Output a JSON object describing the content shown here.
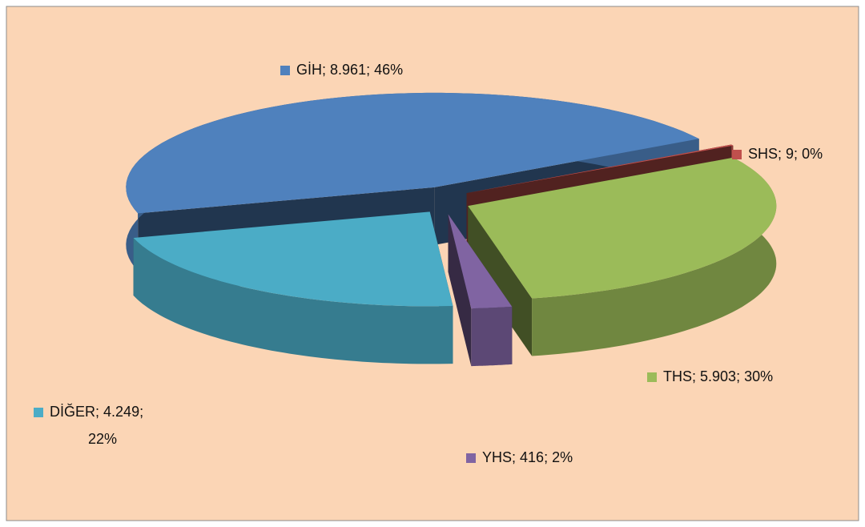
{
  "chart_data": {
    "type": "pie3d",
    "categories": [
      "GİH",
      "SHS",
      "THS",
      "YHS",
      "DİĞER"
    ],
    "values": [
      8961,
      9,
      5903,
      416,
      4249
    ],
    "value_labels": [
      "8.961",
      "9",
      "5.903",
      "416",
      "4.249"
    ],
    "percents": [
      46,
      0,
      30,
      2,
      22
    ],
    "percent_labels": [
      "46%",
      "0%",
      "30%",
      "2%",
      "22%"
    ],
    "label_separator": "; ",
    "colors": [
      "#4f81bd",
      "#c0504d",
      "#9bbb59",
      "#8064a2",
      "#4bacc6"
    ]
  }
}
